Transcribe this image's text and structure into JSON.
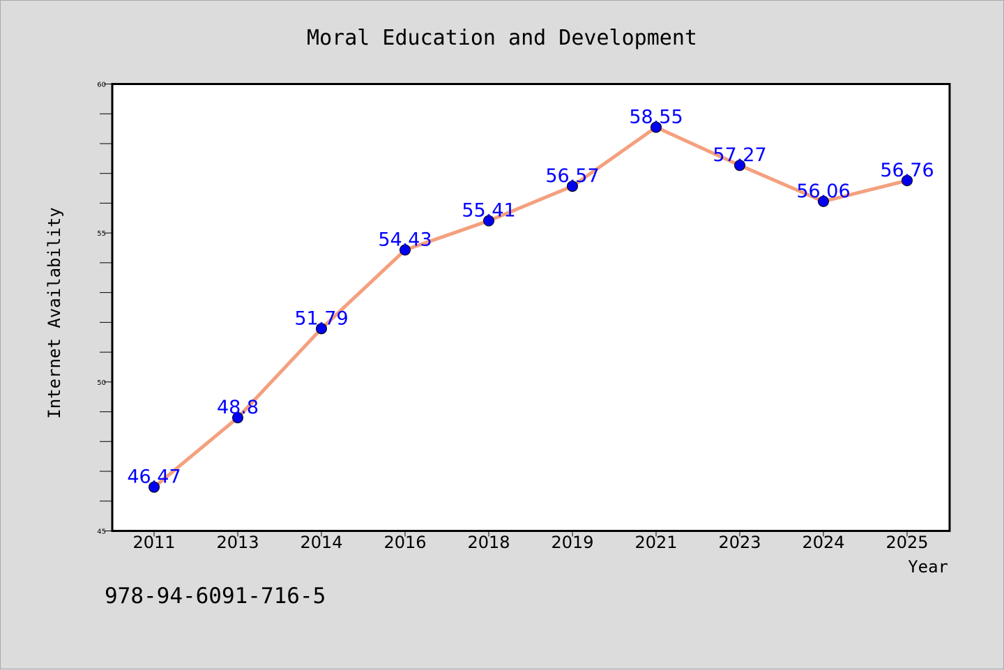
{
  "chart_data": {
    "type": "line",
    "title": "Moral Education and Development",
    "xlabel": "Year",
    "ylabel": "Internet Availability",
    "categories": [
      "2011",
      "2013",
      "2014",
      "2016",
      "2018",
      "2019",
      "2021",
      "2023",
      "2024",
      "2025"
    ],
    "values": [
      46.47,
      48.8,
      51.79,
      54.43,
      55.41,
      56.57,
      58.55,
      57.27,
      56.06,
      56.76
    ],
    "data_labels": [
      "46.47",
      "48.8",
      "51.79",
      "54.43",
      "55.41",
      "56.57",
      "58.55",
      "57.27",
      "56.06",
      "56.76"
    ],
    "ylim": [
      45,
      60
    ],
    "yticks": [
      "45",
      "50",
      "55",
      "60"
    ],
    "grid": false,
    "line_color": "#f4a07e",
    "marker_color": "#0000ee",
    "label_color": "#0000ff"
  },
  "footer": {
    "text": "978-94-6091-716-5"
  }
}
